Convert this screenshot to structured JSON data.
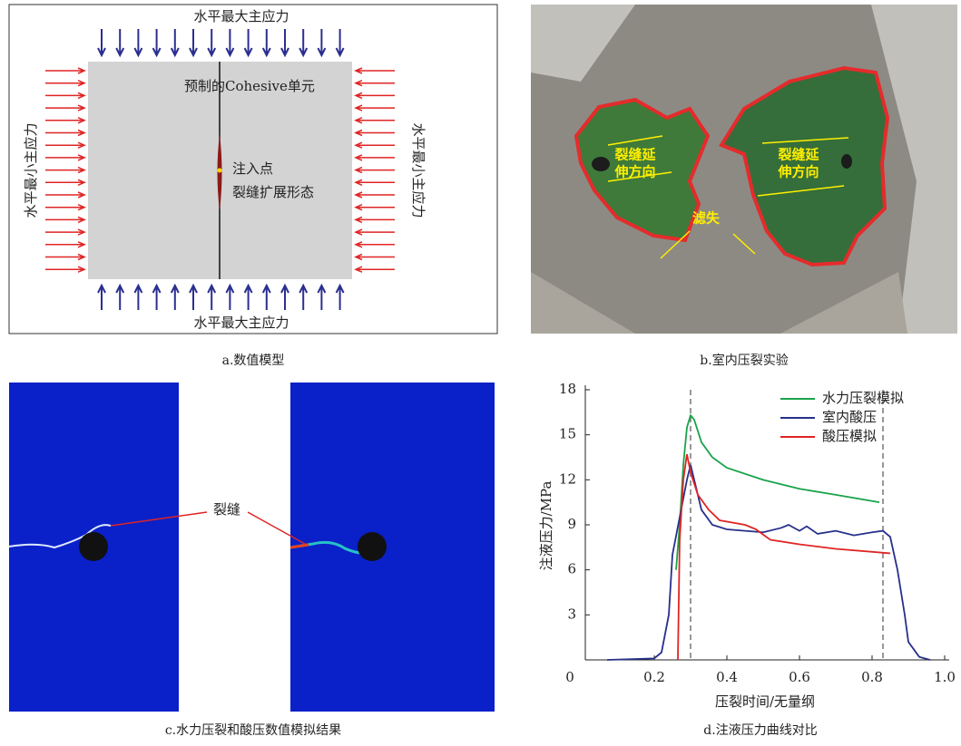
{
  "panel_a": {
    "top_label": "水平最大主应力",
    "bottom_label": "水平最大主应力",
    "left_label": "水平最小主应力",
    "right_label": "水平最小主应力",
    "cohesive_label": "预制的Cohesive单元",
    "injection_label": "注入点",
    "fracture_label": "裂缝扩展形态",
    "caption": "a.数值模型"
  },
  "panel_b": {
    "arrow_label_left": [
      "裂缝延",
      "伸方向"
    ],
    "arrow_label_right": [
      "裂缝延",
      "伸方向"
    ],
    "leakoff_label": "滤失",
    "caption": "b.室内压裂实验"
  },
  "panel_c": {
    "fracture_label": "裂缝",
    "caption": "c.水力压裂和酸压数值模拟结果"
  },
  "chart_data": {
    "type": "line",
    "caption": "d.注液压力曲线对比",
    "x_label": "压裂时间/无量纲",
    "y_label": "注液压力/MPa",
    "xlim": [
      0,
      1
    ],
    "ylim": [
      0,
      18
    ],
    "xticks": [
      0,
      0.2,
      0.4,
      0.6,
      0.8,
      {
        "value": 1,
        "label": "1.0"
      }
    ],
    "yticks": [
      3,
      6,
      9,
      12,
      15,
      18
    ],
    "vlines": [
      0.3,
      0.83
    ],
    "series": [
      {
        "name": "水力压裂模拟",
        "color": "#1aa34a",
        "x": [
          0.26,
          0.27,
          0.28,
          0.29,
          0.3,
          0.31,
          0.33,
          0.36,
          0.4,
          0.5,
          0.6,
          0.7,
          0.82
        ],
        "values": [
          6,
          9,
          13,
          15.5,
          16.3,
          16,
          14.5,
          13.5,
          12.8,
          12,
          11.4,
          11,
          10.5
        ]
      },
      {
        "name": "室内酸压",
        "color": "#27308a",
        "x": [
          0.07,
          0.2,
          0.22,
          0.24,
          0.25,
          0.27,
          0.29,
          0.3,
          0.31,
          0.33,
          0.36,
          0.4,
          0.5,
          0.55,
          0.57,
          0.6,
          0.62,
          0.65,
          0.7,
          0.75,
          0.8,
          0.83,
          0.85,
          0.87,
          0.89,
          0.9,
          0.93,
          0.96
        ],
        "values": [
          0,
          0.1,
          0.5,
          3,
          7,
          9.5,
          12,
          13,
          12,
          10,
          9,
          8.7,
          8.5,
          8.8,
          9,
          8.6,
          8.9,
          8.4,
          8.6,
          8.3,
          8.5,
          8.6,
          8.2,
          6,
          3,
          1.2,
          0.2,
          0
        ]
      },
      {
        "name": "酸压模拟",
        "color": "#e02424",
        "x": [
          0.265,
          0.27,
          0.28,
          0.29,
          0.3,
          0.32,
          0.35,
          0.38,
          0.45,
          0.48,
          0.52,
          0.6,
          0.7,
          0.85
        ],
        "values": [
          0,
          8,
          12,
          13.7,
          12.5,
          11,
          10,
          9.3,
          9,
          8.7,
          8,
          7.7,
          7.4,
          7.1
        ]
      }
    ]
  }
}
